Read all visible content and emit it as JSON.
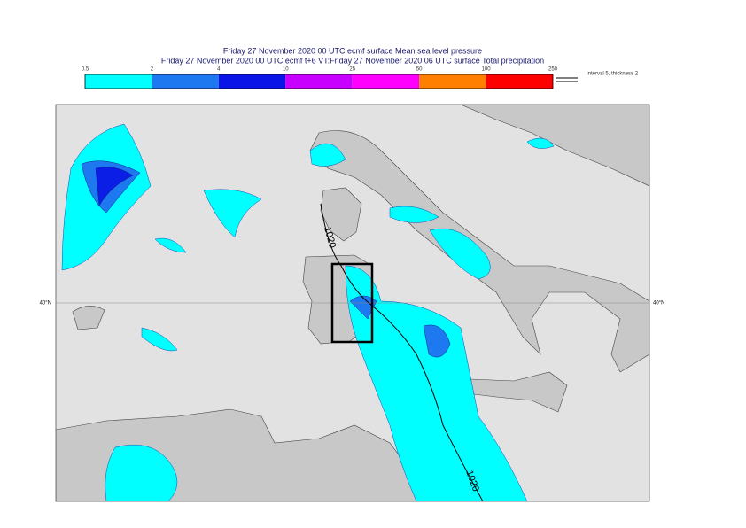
{
  "header": {
    "title_lines": [
      "Friday 27 November 2020 00 UTC ecmf surface  Mean sea level pressure",
      "Friday 27 November 2020 00 UTC ecmf t+6 VT:Friday 27 November 2020 06 UTC surface  Total precipitation"
    ]
  },
  "legend": {
    "bins": [
      "0.5",
      "2",
      "4",
      "10",
      "25",
      "50",
      "100",
      "250"
    ],
    "colors": [
      "#00ffff",
      "#1e78f0",
      "#0a14e6",
      "#c800ff",
      "#ff00ff",
      "#ff8000",
      "#ff0000"
    ],
    "note": "Interval 5, thickness 2"
  },
  "map": {
    "lat_labels": [
      "40°N",
      "40°N"
    ],
    "contour_labels": [
      "1020",
      "1020"
    ]
  }
}
